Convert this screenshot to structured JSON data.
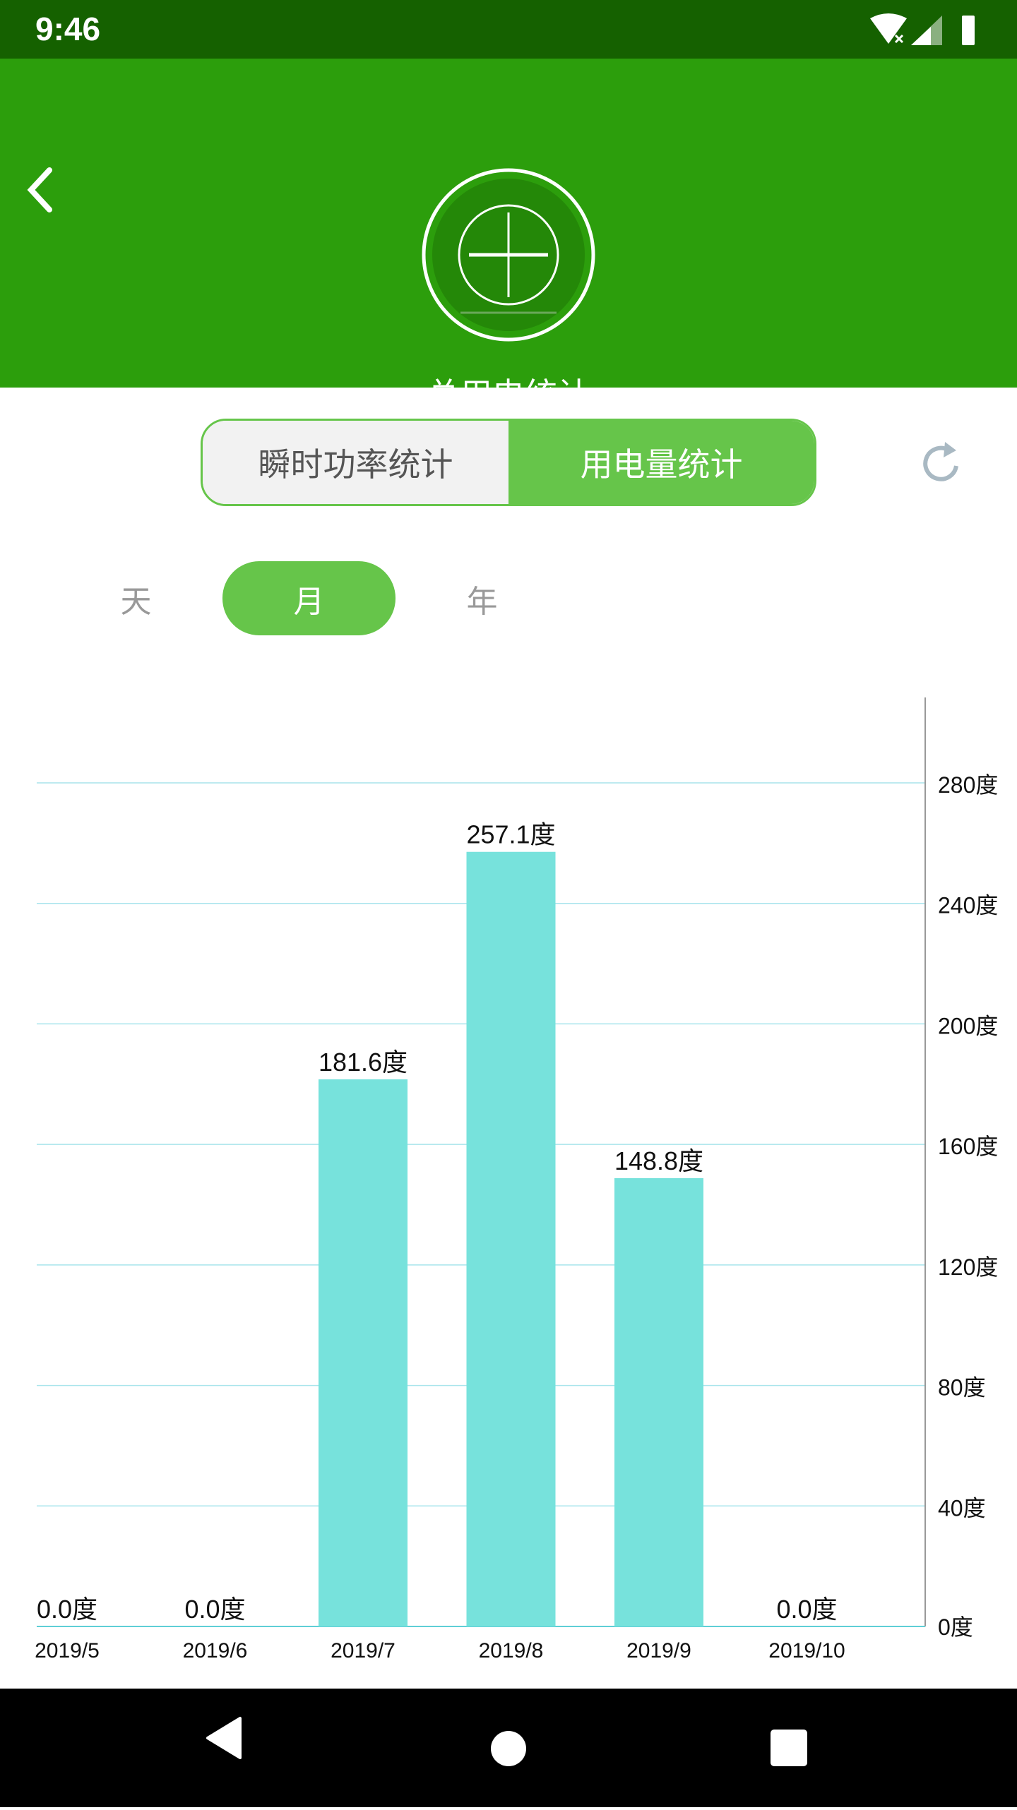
{
  "status_bar": {
    "time": "9:46"
  },
  "header": {
    "title": "总用电统计"
  },
  "segmented": {
    "options": [
      "瞬时功率统计",
      "用电量统计"
    ],
    "selected": "用电量统计"
  },
  "period_tabs": {
    "options": [
      "天",
      "月",
      "年"
    ],
    "selected": "月"
  },
  "colors": {
    "header": "#2c9e0c",
    "status_bar": "#156100",
    "accent": "#66c54a",
    "bar": "#77e2dc"
  },
  "chart_data": {
    "type": "bar",
    "categories": [
      "2019/5",
      "2019/6",
      "2019/7",
      "2019/8",
      "2019/9",
      "2019/10"
    ],
    "values": [
      0.0,
      0.0,
      181.6,
      257.1,
      148.8,
      0.0
    ],
    "value_labels": [
      "0.0度",
      "0.0度",
      "181.6度",
      "257.1度",
      "148.8度",
      "0.0度"
    ],
    "y_ticks": [
      0,
      40,
      80,
      120,
      160,
      200,
      240,
      280
    ],
    "y_tick_labels": [
      "0度",
      "40度",
      "80度",
      "120度",
      "160度",
      "200度",
      "240度",
      "280度"
    ],
    "ylim": [
      0,
      280
    ],
    "y_axis_position": "right",
    "grid": true
  }
}
